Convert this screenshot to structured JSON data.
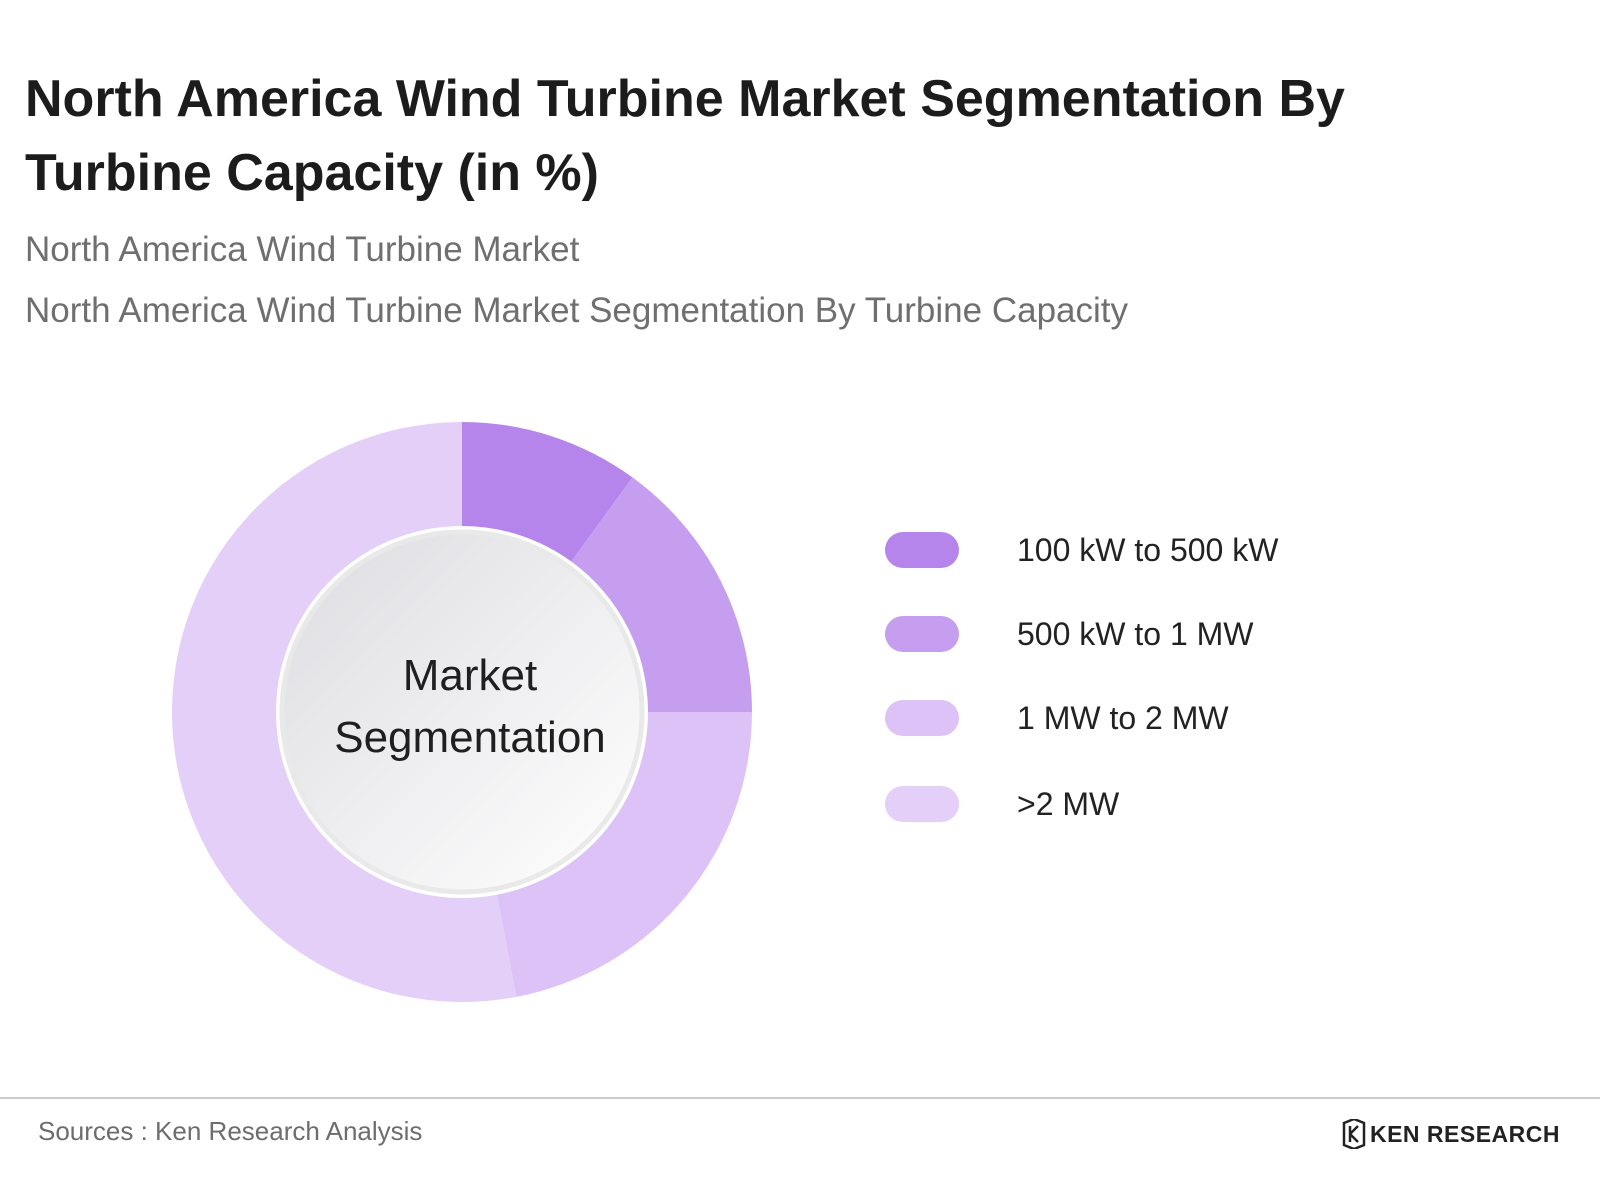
{
  "title": "North America Wind Turbine Market Segmentation By Turbine Capacity (in %)",
  "subtitle1": "North America Wind Turbine Market",
  "subtitle2": "North America Wind Turbine Market Segmentation By Turbine Capacity",
  "center_label_line1": "Market",
  "center_label_line2": "Segmentation",
  "source": "Sources : Ken Research Analysis",
  "logo_text": "KEN RESEARCH",
  "logo_icon": "ken-research-logo-icon",
  "chart_data": {
    "type": "pie",
    "donut": true,
    "categories": [
      "100 kW to 500 kW",
      "500 kW to 1 MW",
      "1 MW to 2 MW",
      ">2 MW"
    ],
    "values": [
      10,
      15,
      22,
      53
    ],
    "colors": [
      "#b585ec",
      "#c69ef0",
      "#dcc2f7",
      "#e4cff8"
    ],
    "legend_position": "right"
  }
}
